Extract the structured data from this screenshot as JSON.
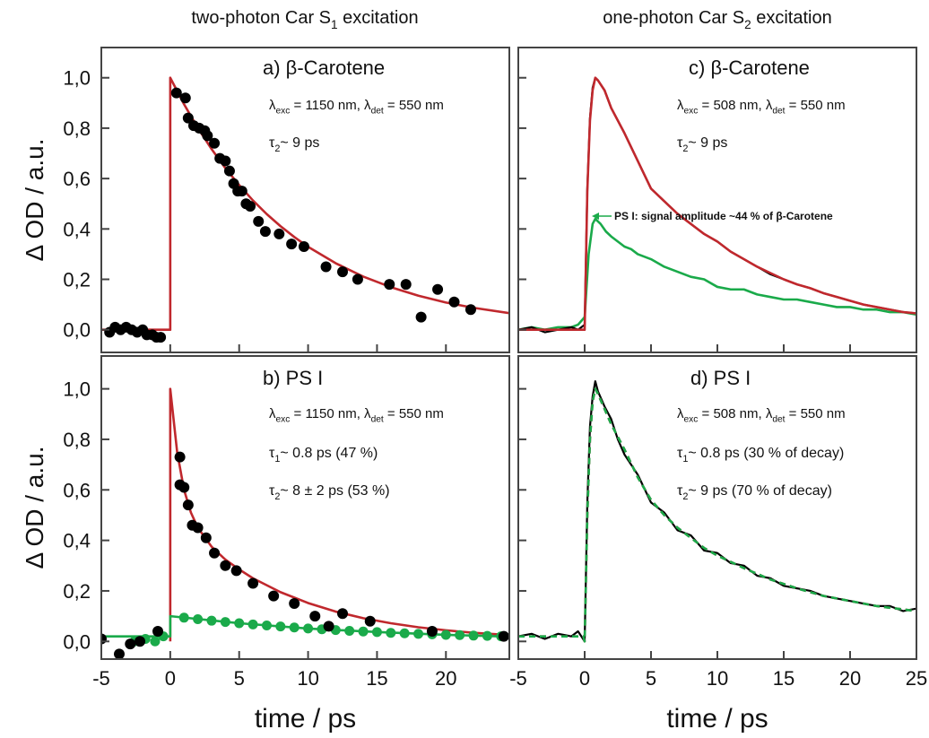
{
  "column_titles": [
    [
      "two-photon Car S",
      {
        "sub": "1"
      },
      " excitation"
    ],
    [
      "one-photon Car S",
      {
        "sub": "2"
      },
      " excitation"
    ]
  ],
  "chart_data": [
    {
      "type": "line",
      "xlim": [
        -5,
        24.6
      ],
      "ylim": [
        -0.09,
        1.12
      ],
      "xticks": [
        -5,
        0,
        5,
        10,
        15,
        20
      ],
      "xtick_labels": false,
      "yticks": [
        {
          "value": 0,
          "label": "0,0"
        },
        {
          "value": 0.2,
          "label": "0,2"
        },
        {
          "value": 0.4,
          "label": "0,4"
        },
        {
          "value": 0.6,
          "label": "0,6"
        },
        {
          "value": 0.8,
          "label": "0,8"
        },
        {
          "value": 1,
          "label": "1,0"
        }
      ],
      "ytick_labels": true,
      "ylabel": "Δ OD / a.u.",
      "annotations": [
        [
          "a) β-Carotene"
        ],
        [
          "λ",
          {
            "sub": "exc"
          },
          " = 1150 nm, λ",
          {
            "sub": "det"
          },
          " = 550 nm"
        ],
        [
          "τ",
          {
            "sub": "2"
          },
          "~ 9 ps"
        ]
      ],
      "series": [
        {
          "mode": "lines",
          "color": "#c0282d",
          "x": [
            -5,
            0,
            0,
            1,
            2,
            3,
            4,
            5,
            6,
            7,
            8,
            9,
            10,
            12,
            14,
            16,
            18,
            20,
            22,
            24.6
          ],
          "values": [
            0,
            0,
            1,
            0.895,
            0.801,
            0.717,
            0.641,
            0.574,
            0.513,
            0.459,
            0.411,
            0.368,
            0.329,
            0.264,
            0.211,
            0.169,
            0.135,
            0.108,
            0.087,
            0.066
          ]
        },
        {
          "mode": "markers",
          "color": "#000000",
          "x": [
            -4.4,
            -4.0,
            -3.6,
            -3.2,
            -2.8,
            -2.4,
            -2.0,
            -1.7,
            -1.3,
            -1.0,
            -0.7,
            0.45,
            1.1,
            1.3,
            1.7,
            2.1,
            2.5,
            2.7,
            3.2,
            3.6,
            4.0,
            4.3,
            4.6,
            4.9,
            5.2,
            5.5,
            5.8,
            6.4,
            6.9,
            7.9,
            8.8,
            9.7,
            11.3,
            12.5,
            13.6,
            15.9,
            17.1,
            18.2,
            19.4,
            20.6,
            21.8
          ],
          "values": [
            -0.01,
            0.01,
            0.0,
            0.01,
            0.0,
            -0.01,
            0.0,
            -0.02,
            -0.02,
            -0.03,
            -0.03,
            0.94,
            0.92,
            0.84,
            0.81,
            0.8,
            0.79,
            0.77,
            0.74,
            0.68,
            0.67,
            0.63,
            0.58,
            0.55,
            0.55,
            0.5,
            0.49,
            0.43,
            0.39,
            0.38,
            0.34,
            0.33,
            0.25,
            0.23,
            0.2,
            0.18,
            0.18,
            0.05,
            0.16,
            0.11,
            0.08
          ]
        }
      ]
    },
    {
      "type": "line",
      "xlim": [
        -5,
        24.6
      ],
      "ylim": [
        -0.07,
        1.13
      ],
      "xticks": [
        -5,
        0,
        5,
        10,
        15,
        20
      ],
      "xtick_labels": true,
      "yticks": [
        {
          "value": 0,
          "label": "0,0"
        },
        {
          "value": 0.2,
          "label": "0,2"
        },
        {
          "value": 0.4,
          "label": "0,4"
        },
        {
          "value": 0.6,
          "label": "0,6"
        },
        {
          "value": 0.8,
          "label": "0,8"
        },
        {
          "value": 1,
          "label": "1,0"
        }
      ],
      "ytick_labels": true,
      "ylabel": "Δ OD / a.u.",
      "xlabel": "time / ps",
      "annotations": [
        [
          "b) PS I"
        ],
        [
          "λ",
          {
            "sub": "exc"
          },
          " = 1150 nm, λ",
          {
            "sub": "det"
          },
          " = 550 nm"
        ],
        [
          "τ",
          {
            "sub": "1"
          },
          "~ 0.8 ps (47 %)"
        ],
        [
          "τ",
          {
            "sub": "2"
          },
          "~ 8 ± 2 ps (53 %)"
        ]
      ],
      "series": [
        {
          "mode": "lines",
          "color": "#c0282d",
          "x": [
            0,
            0,
            0.5,
            1,
            1.5,
            2,
            3,
            4,
            5,
            6,
            8,
            10,
            12,
            14,
            16,
            18,
            20,
            22,
            24.6
          ],
          "values": [
            0,
            1,
            0.75,
            0.6,
            0.51,
            0.45,
            0.375,
            0.324,
            0.285,
            0.25,
            0.195,
            0.152,
            0.118,
            0.092,
            0.072,
            0.056,
            0.044,
            0.034,
            0.025
          ]
        },
        {
          "mode": "lines",
          "color": "#1aaa4a",
          "x": [
            -5,
            0,
            0,
            5,
            10,
            15,
            20,
            24.6
          ],
          "values": [
            0.02,
            0.02,
            0.1,
            0.072,
            0.051,
            0.037,
            0.026,
            0.019
          ]
        },
        {
          "mode": "markers",
          "color": "#1aaa4a",
          "x": [
            -2.6,
            -1.8,
            -1.1,
            -0.5,
            1,
            2,
            3,
            4,
            5,
            6,
            7,
            8,
            9,
            10,
            11,
            12,
            13,
            14,
            15,
            16,
            17,
            18,
            19,
            20,
            21,
            22,
            23,
            24
          ],
          "values": [
            0.0,
            0.01,
            0.0,
            0.02,
            0.094,
            0.088,
            0.082,
            0.077,
            0.072,
            0.067,
            0.063,
            0.059,
            0.055,
            0.051,
            0.048,
            0.045,
            0.042,
            0.039,
            0.037,
            0.034,
            0.032,
            0.03,
            0.028,
            0.026,
            0.025,
            0.023,
            0.022,
            0.02
          ]
        },
        {
          "mode": "markers",
          "color": "#000000",
          "x": [
            -5,
            -3.7,
            -2.9,
            -2.2,
            -0.9,
            0.7,
            0.7,
            1.0,
            1.3,
            1.6,
            2.0,
            2.6,
            3.2,
            4.0,
            4.8,
            6.0,
            7.5,
            9.0,
            10.5,
            11.5,
            12.5,
            14.5,
            19.0,
            24.2
          ],
          "values": [
            0.01,
            -0.05,
            -0.01,
            0.0,
            0.04,
            0.73,
            0.62,
            0.61,
            0.54,
            0.46,
            0.45,
            0.41,
            0.35,
            0.3,
            0.28,
            0.23,
            0.18,
            0.15,
            0.1,
            0.06,
            0.11,
            0.08,
            0.04,
            0.02
          ]
        }
      ]
    },
    {
      "type": "line",
      "xlim": [
        -5,
        25
      ],
      "ylim": [
        -0.09,
        1.12
      ],
      "xticks": [
        -5,
        0,
        5,
        10,
        15,
        20,
        25
      ],
      "xtick_labels": false,
      "yticks": [
        0,
        0.2,
        0.4,
        0.6,
        0.8,
        1
      ],
      "ytick_labels": false,
      "annotations": [
        [
          "c) β-Carotene"
        ],
        [
          "λ",
          {
            "sub": "exc"
          },
          " = 508 nm, λ",
          {
            "sub": "det"
          },
          " = 550 nm"
        ],
        [
          "τ",
          {
            "sub": "2"
          },
          "~ 9 ps"
        ]
      ],
      "callout": {
        "text": "PS I: signal amplitude ~44 % of β-Carotene",
        "color": "#1aaa4a"
      },
      "series": [
        {
          "mode": "lines",
          "color": "#1aaa4a",
          "x": [
            -5,
            -4,
            -3,
            -2,
            -1,
            -0.5,
            0,
            0.3,
            0.6,
            0.8,
            1.2,
            1.6,
            2,
            2.5,
            3,
            3.5,
            4,
            5,
            6,
            7,
            8,
            9,
            10,
            11,
            12,
            13,
            14,
            15,
            16,
            17,
            18,
            19,
            20,
            21,
            22,
            23,
            24,
            25
          ],
          "values": [
            0.0,
            0.01,
            0.0,
            0.01,
            0.01,
            0.02,
            0.05,
            0.3,
            0.42,
            0.44,
            0.42,
            0.39,
            0.37,
            0.35,
            0.33,
            0.32,
            0.3,
            0.28,
            0.25,
            0.23,
            0.21,
            0.2,
            0.17,
            0.16,
            0.16,
            0.14,
            0.13,
            0.12,
            0.12,
            0.11,
            0.1,
            0.09,
            0.09,
            0.08,
            0.08,
            0.07,
            0.07,
            0.06
          ]
        },
        {
          "mode": "lines",
          "color": "#000000",
          "x": [
            -5,
            -4,
            -3,
            -2,
            -1,
            -0.5,
            0,
            0.2,
            0.4,
            0.6,
            0.8,
            1,
            1.5,
            2,
            2.5,
            3,
            4,
            5,
            6,
            7,
            8,
            9,
            10,
            11,
            12,
            13,
            14,
            15,
            16,
            17,
            18,
            19,
            20,
            21,
            22,
            23,
            24,
            25
          ],
          "values": [
            0,
            0.01,
            -0.01,
            0,
            0.01,
            0,
            0.02,
            0.56,
            0.84,
            0.96,
            1.0,
            0.99,
            0.95,
            0.88,
            0.83,
            0.78,
            0.67,
            0.56,
            0.51,
            0.46,
            0.42,
            0.38,
            0.35,
            0.31,
            0.28,
            0.25,
            0.22,
            0.2,
            0.18,
            0.165,
            0.145,
            0.13,
            0.115,
            0.1,
            0.09,
            0.08,
            0.07,
            0.065
          ]
        },
        {
          "mode": "lines",
          "color": "#c0282d",
          "x": [
            -5,
            0,
            0.2,
            0.4,
            0.6,
            0.8,
            1,
            1.5,
            2,
            3,
            4,
            5,
            6,
            7,
            8,
            9,
            10,
            11,
            12,
            13,
            14,
            15,
            16,
            17,
            18,
            19,
            20,
            21,
            22,
            23,
            24,
            25
          ],
          "values": [
            0,
            0,
            0.55,
            0.83,
            0.95,
            1.0,
            0.99,
            0.95,
            0.88,
            0.78,
            0.67,
            0.56,
            0.51,
            0.46,
            0.42,
            0.38,
            0.35,
            0.31,
            0.28,
            0.25,
            0.225,
            0.2,
            0.18,
            0.165,
            0.145,
            0.13,
            0.115,
            0.1,
            0.09,
            0.08,
            0.07,
            0.065
          ]
        }
      ]
    },
    {
      "type": "line",
      "xlim": [
        -5,
        25
      ],
      "ylim": [
        -0.07,
        1.13
      ],
      "xticks": [
        -5,
        0,
        5,
        10,
        15,
        20,
        25
      ],
      "xtick_labels": true,
      "yticks": [
        0,
        0.2,
        0.4,
        0.6,
        0.8,
        1
      ],
      "ytick_labels": false,
      "xlabel": "time / ps",
      "annotations": [
        [
          "d) PS I"
        ],
        [
          "λ",
          {
            "sub": "exc"
          },
          " = 508 nm, λ",
          {
            "sub": "det"
          },
          " = 550 nm"
        ],
        [
          "τ",
          {
            "sub": "1"
          },
          "~ 0.8 ps (30 % of decay)"
        ],
        [
          "τ",
          {
            "sub": "2"
          },
          "~ 9 ps (70 % of decay)"
        ]
      ],
      "series": [
        {
          "mode": "lines",
          "color": "#000000",
          "x": [
            -5,
            -4,
            -3,
            -2,
            -1,
            -0.5,
            0,
            0.2,
            0.4,
            0.6,
            0.8,
            1,
            1.5,
            2,
            2.5,
            3,
            4,
            5,
            6,
            7,
            8,
            9,
            10,
            11,
            12,
            13,
            14,
            15,
            16,
            17,
            18,
            19,
            20,
            21,
            22,
            23,
            24,
            25
          ],
          "values": [
            0.02,
            0.03,
            0.01,
            0.03,
            0.02,
            0.04,
            0.0,
            0.55,
            0.85,
            0.97,
            1.03,
            0.99,
            0.93,
            0.88,
            0.8,
            0.74,
            0.66,
            0.55,
            0.51,
            0.44,
            0.42,
            0.36,
            0.35,
            0.31,
            0.3,
            0.26,
            0.25,
            0.22,
            0.21,
            0.2,
            0.18,
            0.17,
            0.16,
            0.15,
            0.14,
            0.14,
            0.12,
            0.13
          ]
        },
        {
          "mode": "lines",
          "dash": true,
          "color": "#c0282d",
          "x": [
            -5,
            -0.1,
            0,
            0.2,
            0.4,
            0.6,
            0.8,
            1,
            1.5,
            2,
            3,
            4,
            5,
            6,
            7,
            8,
            9,
            10,
            12,
            14,
            16,
            18,
            20,
            22,
            25
          ],
          "values": [
            0.02,
            0.02,
            0,
            0.5,
            0.8,
            0.95,
            1.0,
            0.98,
            0.92,
            0.86,
            0.76,
            0.65,
            0.56,
            0.5,
            0.45,
            0.41,
            0.37,
            0.34,
            0.29,
            0.245,
            0.21,
            0.18,
            0.16,
            0.14,
            0.12
          ]
        },
        {
          "mode": "lines",
          "dash": true,
          "color": "#1aaa4a",
          "x": [
            -5,
            -0.1,
            0,
            0.2,
            0.4,
            0.6,
            0.8,
            1,
            1.5,
            2,
            3,
            4,
            5,
            6,
            7,
            8,
            9,
            10,
            12,
            14,
            16,
            18,
            20,
            22,
            25
          ],
          "values": [
            0.02,
            0.02,
            0,
            0.5,
            0.8,
            0.95,
            1.0,
            0.98,
            0.92,
            0.86,
            0.76,
            0.65,
            0.56,
            0.5,
            0.45,
            0.41,
            0.37,
            0.34,
            0.29,
            0.245,
            0.21,
            0.18,
            0.16,
            0.14,
            0.12
          ]
        }
      ]
    }
  ]
}
